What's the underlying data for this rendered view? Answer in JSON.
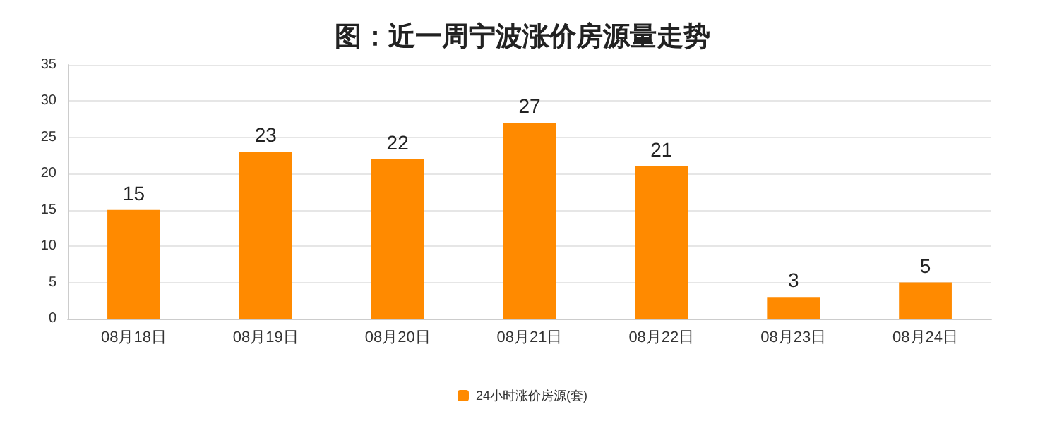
{
  "chart_data": {
    "type": "bar",
    "title": "图：近一周宁波涨价房源量走势",
    "categories": [
      "08月18日",
      "08月19日",
      "08月20日",
      "08月21日",
      "08月22日",
      "08月23日",
      "08月24日"
    ],
    "series": [
      {
        "name": "24小时涨价房源(套)",
        "color": "#ff8a00",
        "values": [
          15,
          23,
          22,
          27,
          21,
          3,
          5
        ]
      }
    ],
    "ylim": [
      0,
      35
    ],
    "yticks": [
      0,
      5,
      10,
      15,
      20,
      25,
      30,
      35
    ],
    "grid": "y",
    "legend": "bottom",
    "data_labels": true
  }
}
